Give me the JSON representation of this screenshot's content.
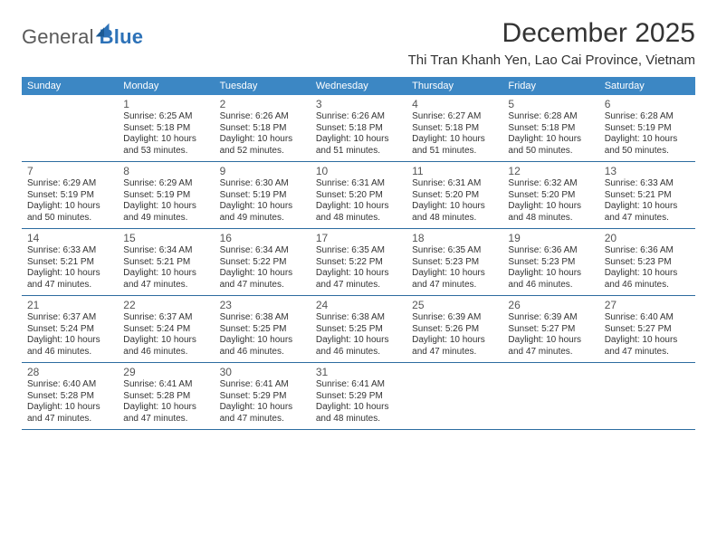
{
  "brand": {
    "word1": "General",
    "word2": "Blue"
  },
  "title": "December 2025",
  "subtitle": "Thi Tran Khanh Yen, Lao Cai Province, Vietnam",
  "colors": {
    "header_bg": "#3c87c4",
    "header_text": "#ffffff",
    "divider": "#2d6ca0",
    "text": "#333333",
    "logo_gray": "#5a5a5a",
    "logo_blue": "#2d72b8",
    "page_bg": "#ffffff"
  },
  "typography": {
    "title_fontsize": 30,
    "subtitle_fontsize": 15,
    "dayheader_fontsize": 11,
    "daynum_fontsize": 12,
    "body_fontsize": 10
  },
  "day_names": [
    "Sunday",
    "Monday",
    "Tuesday",
    "Wednesday",
    "Thursday",
    "Friday",
    "Saturday"
  ],
  "first_weekday_index": 1,
  "days": [
    {
      "n": 1,
      "sunrise": "6:25 AM",
      "sunset": "5:18 PM",
      "dl_h": 10,
      "dl_m": 53
    },
    {
      "n": 2,
      "sunrise": "6:26 AM",
      "sunset": "5:18 PM",
      "dl_h": 10,
      "dl_m": 52
    },
    {
      "n": 3,
      "sunrise": "6:26 AM",
      "sunset": "5:18 PM",
      "dl_h": 10,
      "dl_m": 51
    },
    {
      "n": 4,
      "sunrise": "6:27 AM",
      "sunset": "5:18 PM",
      "dl_h": 10,
      "dl_m": 51
    },
    {
      "n": 5,
      "sunrise": "6:28 AM",
      "sunset": "5:18 PM",
      "dl_h": 10,
      "dl_m": 50
    },
    {
      "n": 6,
      "sunrise": "6:28 AM",
      "sunset": "5:19 PM",
      "dl_h": 10,
      "dl_m": 50
    },
    {
      "n": 7,
      "sunrise": "6:29 AM",
      "sunset": "5:19 PM",
      "dl_h": 10,
      "dl_m": 50
    },
    {
      "n": 8,
      "sunrise": "6:29 AM",
      "sunset": "5:19 PM",
      "dl_h": 10,
      "dl_m": 49
    },
    {
      "n": 9,
      "sunrise": "6:30 AM",
      "sunset": "5:19 PM",
      "dl_h": 10,
      "dl_m": 49
    },
    {
      "n": 10,
      "sunrise": "6:31 AM",
      "sunset": "5:20 PM",
      "dl_h": 10,
      "dl_m": 48
    },
    {
      "n": 11,
      "sunrise": "6:31 AM",
      "sunset": "5:20 PM",
      "dl_h": 10,
      "dl_m": 48
    },
    {
      "n": 12,
      "sunrise": "6:32 AM",
      "sunset": "5:20 PM",
      "dl_h": 10,
      "dl_m": 48
    },
    {
      "n": 13,
      "sunrise": "6:33 AM",
      "sunset": "5:21 PM",
      "dl_h": 10,
      "dl_m": 47
    },
    {
      "n": 14,
      "sunrise": "6:33 AM",
      "sunset": "5:21 PM",
      "dl_h": 10,
      "dl_m": 47
    },
    {
      "n": 15,
      "sunrise": "6:34 AM",
      "sunset": "5:21 PM",
      "dl_h": 10,
      "dl_m": 47
    },
    {
      "n": 16,
      "sunrise": "6:34 AM",
      "sunset": "5:22 PM",
      "dl_h": 10,
      "dl_m": 47
    },
    {
      "n": 17,
      "sunrise": "6:35 AM",
      "sunset": "5:22 PM",
      "dl_h": 10,
      "dl_m": 47
    },
    {
      "n": 18,
      "sunrise": "6:35 AM",
      "sunset": "5:23 PM",
      "dl_h": 10,
      "dl_m": 47
    },
    {
      "n": 19,
      "sunrise": "6:36 AM",
      "sunset": "5:23 PM",
      "dl_h": 10,
      "dl_m": 46
    },
    {
      "n": 20,
      "sunrise": "6:36 AM",
      "sunset": "5:23 PM",
      "dl_h": 10,
      "dl_m": 46
    },
    {
      "n": 21,
      "sunrise": "6:37 AM",
      "sunset": "5:24 PM",
      "dl_h": 10,
      "dl_m": 46
    },
    {
      "n": 22,
      "sunrise": "6:37 AM",
      "sunset": "5:24 PM",
      "dl_h": 10,
      "dl_m": 46
    },
    {
      "n": 23,
      "sunrise": "6:38 AM",
      "sunset": "5:25 PM",
      "dl_h": 10,
      "dl_m": 46
    },
    {
      "n": 24,
      "sunrise": "6:38 AM",
      "sunset": "5:25 PM",
      "dl_h": 10,
      "dl_m": 46
    },
    {
      "n": 25,
      "sunrise": "6:39 AM",
      "sunset": "5:26 PM",
      "dl_h": 10,
      "dl_m": 47
    },
    {
      "n": 26,
      "sunrise": "6:39 AM",
      "sunset": "5:27 PM",
      "dl_h": 10,
      "dl_m": 47
    },
    {
      "n": 27,
      "sunrise": "6:40 AM",
      "sunset": "5:27 PM",
      "dl_h": 10,
      "dl_m": 47
    },
    {
      "n": 28,
      "sunrise": "6:40 AM",
      "sunset": "5:28 PM",
      "dl_h": 10,
      "dl_m": 47
    },
    {
      "n": 29,
      "sunrise": "6:41 AM",
      "sunset": "5:28 PM",
      "dl_h": 10,
      "dl_m": 47
    },
    {
      "n": 30,
      "sunrise": "6:41 AM",
      "sunset": "5:29 PM",
      "dl_h": 10,
      "dl_m": 47
    },
    {
      "n": 31,
      "sunrise": "6:41 AM",
      "sunset": "5:29 PM",
      "dl_h": 10,
      "dl_m": 48
    }
  ],
  "labels": {
    "sunrise": "Sunrise:",
    "sunset": "Sunset:",
    "daylight_prefix": "Daylight:",
    "hours_word": "hours",
    "and_word": "and",
    "minutes_word": "minutes."
  }
}
